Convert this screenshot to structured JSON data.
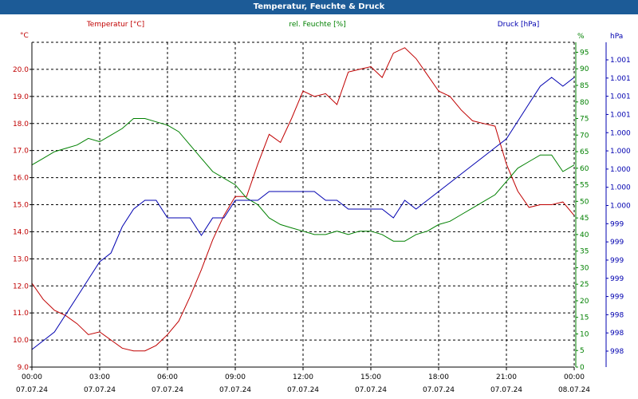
{
  "title": "Temperatur, Feuchte & Druck",
  "colors": {
    "title_bg": "#1c5b97",
    "temperature": "#c00000",
    "humidity": "#008000",
    "pressure": "#0000b0",
    "grid": "#000000"
  },
  "chart_data": {
    "type": "line",
    "title": "Temperatur, Feuchte & Druck",
    "grid": true,
    "x_unit": "hours since 07.07.24 00:00",
    "x_ticks": [
      {
        "time": "00:00",
        "date": "07.07.24"
      },
      {
        "time": "03:00",
        "date": "07.07.24"
      },
      {
        "time": "06:00",
        "date": "07.07.24"
      },
      {
        "time": "09:00",
        "date": "07.07.24"
      },
      {
        "time": "12:00",
        "date": "07.07.24"
      },
      {
        "time": "15:00",
        "date": "07.07.24"
      },
      {
        "time": "18:00",
        "date": "07.07.24"
      },
      {
        "time": "21:00",
        "date": "07.07.24"
      },
      {
        "time": "00:00",
        "date": "08.07.24"
      }
    ],
    "xlim": [
      0,
      24
    ],
    "axes": {
      "temperature": {
        "label": "Temperatur [°C]",
        "unit": "°C",
        "ylim": [
          9.0,
          21.0
        ],
        "ticks": [
          "9.0",
          "10.0",
          "11.0",
          "12.0",
          "13.0",
          "14.0",
          "15.0",
          "16.0",
          "17.0",
          "18.0",
          "19.0",
          "20.0"
        ]
      },
      "humidity": {
        "label": "rel. Feuchte [%]",
        "unit": "%",
        "ylim": [
          0,
          98
        ],
        "ticks": [
          "0",
          "5",
          "10",
          "15",
          "20",
          "25",
          "30",
          "35",
          "40",
          "45",
          "50",
          "55",
          "60",
          "65",
          "70",
          "75",
          "80",
          "85",
          "90",
          "95"
        ]
      },
      "pressure": {
        "label": "Druck [hPa]",
        "unit": "hPa",
        "ticks": [
          "998",
          "998",
          "998",
          "999",
          "999",
          "999",
          "999",
          "999",
          "1.000",
          "1.000",
          "1.000",
          "1.000",
          "1.000",
          "1.001",
          "1.001",
          "1.001",
          "1.001"
        ]
      }
    },
    "series": [
      {
        "name": "Temperatur [°C]",
        "axis": "temperature",
        "x": [
          0,
          0.5,
          1,
          1.5,
          2,
          2.5,
          3,
          3.5,
          4,
          4.5,
          5,
          5.5,
          6,
          6.5,
          7,
          7.5,
          8,
          8.5,
          9,
          9.5,
          10,
          10.5,
          11,
          11.5,
          12,
          12.5,
          13,
          13.5,
          14,
          14.5,
          15,
          15.5,
          16,
          16.5,
          17,
          17.5,
          18,
          18.5,
          19,
          19.5,
          20,
          20.5,
          21,
          21.5,
          22,
          22.5,
          23,
          23.5,
          24
        ],
        "values": [
          12.1,
          11.5,
          11.1,
          10.9,
          10.6,
          10.2,
          10.3,
          10.0,
          9.7,
          9.6,
          9.6,
          9.8,
          10.2,
          10.7,
          11.6,
          12.6,
          13.7,
          14.6,
          15.3,
          15.3,
          16.5,
          17.6,
          17.3,
          18.2,
          19.2,
          19.0,
          19.1,
          18.7,
          19.9,
          20.0,
          20.1,
          19.7,
          20.6,
          20.8,
          20.4,
          19.8,
          19.2,
          19.0,
          18.5,
          18.1,
          18.0,
          17.9,
          16.5,
          15.5,
          14.9,
          15.0,
          15.0,
          15.1,
          14.6
        ]
      },
      {
        "name": "rel. Feuchte [%]",
        "axis": "humidity",
        "x": [
          0,
          0.5,
          1,
          1.5,
          2,
          2.5,
          3,
          3.5,
          4,
          4.5,
          5,
          5.5,
          6,
          6.5,
          7,
          7.5,
          8,
          8.5,
          9,
          9.5,
          10,
          10.5,
          11,
          11.5,
          12,
          12.5,
          13,
          13.5,
          14,
          14.5,
          15,
          15.5,
          16,
          16.5,
          17,
          17.5,
          18,
          18.5,
          19,
          19.5,
          20,
          20.5,
          21,
          21.5,
          22,
          22.5,
          23,
          23.5,
          24
        ],
        "values": [
          61,
          63,
          65,
          66,
          67,
          69,
          68,
          70,
          72,
          75,
          75,
          74,
          73,
          71,
          67,
          63,
          59,
          57,
          55,
          51,
          49,
          45,
          43,
          42,
          41,
          40,
          40,
          41,
          40,
          41,
          41,
          40,
          38,
          38,
          40,
          41,
          43,
          44,
          46,
          48,
          50,
          52,
          56,
          60,
          62,
          64,
          64,
          59,
          61
        ]
      },
      {
        "name": "Druck [hPa]",
        "axis": "pressure",
        "values": [
          998.2,
          998.3,
          998.4,
          998.6,
          998.8,
          999.0,
          999.2,
          999.3,
          999.6,
          999.8,
          999.9,
          999.9,
          999.7,
          999.7,
          999.7,
          999.5,
          999.7,
          999.7,
          999.9,
          999.9,
          999.9,
          1000.0,
          1000.0,
          1000.0,
          1000.0,
          1000.0,
          999.9,
          999.9,
          999.8,
          999.8,
          999.8,
          999.8,
          999.7,
          999.9,
          999.8,
          999.9,
          1000.0,
          1000.1,
          1000.2,
          1000.3,
          1000.4,
          1000.5,
          1000.6,
          1000.8,
          1001.0,
          1001.2,
          1001.3,
          1001.2,
          1001.3
        ]
      }
    ]
  }
}
